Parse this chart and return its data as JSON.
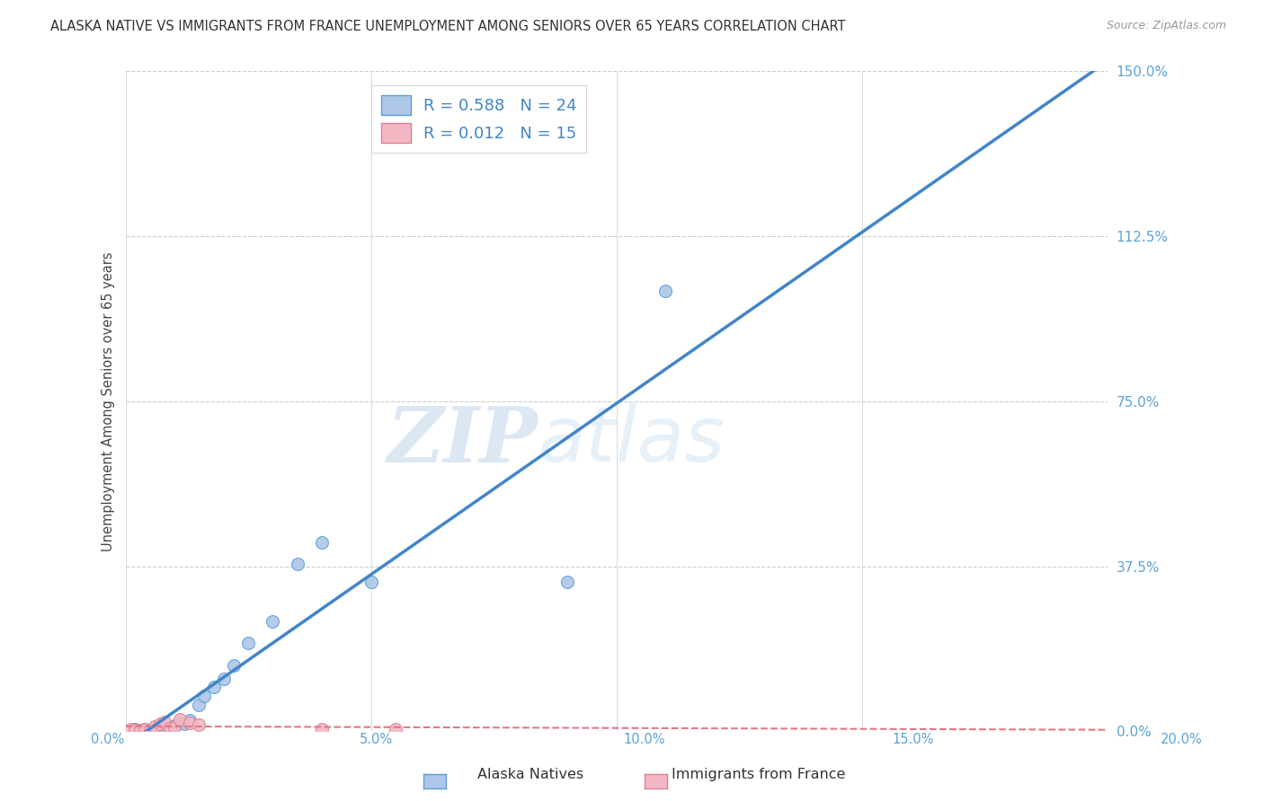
{
  "title": "ALASKA NATIVE VS IMMIGRANTS FROM FRANCE UNEMPLOYMENT AMONG SENIORS OVER 65 YEARS CORRELATION CHART",
  "source": "Source: ZipAtlas.com",
  "ylabel": "Unemployment Among Seniors over 65 years",
  "xlabel_alaska": "Alaska Natives",
  "xlabel_france": "Immigrants from France",
  "watermark_zip": "ZIP",
  "watermark_atlas": "atlas",
  "xlim": [
    0.0,
    0.2
  ],
  "ylim": [
    0.0,
    1.5
  ],
  "yticks": [
    0.0,
    0.375,
    0.75,
    1.125,
    1.5
  ],
  "ytick_labels": [
    "0.0%",
    "37.5%",
    "75.0%",
    "112.5%",
    "150.0%"
  ],
  "xticks": [
    0.0,
    0.05,
    0.1,
    0.15,
    0.2
  ],
  "xtick_labels": [
    "0.0%",
    "5.0%",
    "10.0%",
    "15.0%",
    "20.0%"
  ],
  "alaska_R": 0.588,
  "alaska_N": 24,
  "france_R": 0.012,
  "france_N": 15,
  "alaska_color": "#aec6e8",
  "alaska_edge_color": "#5a9fd4",
  "alaska_line_color": "#4285c8",
  "france_color": "#f4b8c4",
  "france_edge_color": "#e08090",
  "france_line_color": "#e07888",
  "alaska_scatter_x": [
    0.002,
    0.003,
    0.004,
    0.005,
    0.006,
    0.007,
    0.008,
    0.009,
    0.01,
    0.011,
    0.012,
    0.013,
    0.015,
    0.016,
    0.018,
    0.02,
    0.022,
    0.025,
    0.03,
    0.035,
    0.04,
    0.05,
    0.09,
    0.11
  ],
  "alaska_scatter_y": [
    0.005,
    0.003,
    0.005,
    0.004,
    0.006,
    0.01,
    0.008,
    0.012,
    0.014,
    0.02,
    0.018,
    0.025,
    0.06,
    0.08,
    0.1,
    0.12,
    0.15,
    0.2,
    0.25,
    0.38,
    0.43,
    0.34,
    0.34,
    1.0
  ],
  "france_scatter_x": [
    0.001,
    0.002,
    0.003,
    0.004,
    0.005,
    0.006,
    0.007,
    0.008,
    0.009,
    0.01,
    0.011,
    0.013,
    0.015,
    0.04,
    0.055
  ],
  "france_scatter_y": [
    0.005,
    0.004,
    0.003,
    0.006,
    0.004,
    0.012,
    0.018,
    0.022,
    0.008,
    0.01,
    0.028,
    0.02,
    0.016,
    0.006,
    0.006
  ],
  "background_color": "#ffffff",
  "grid_color": "#cccccc",
  "title_color": "#333333",
  "axis_label_color": "#444444",
  "tick_label_color": "#5ba3d9",
  "right_tick_color": "#5ba3d9"
}
